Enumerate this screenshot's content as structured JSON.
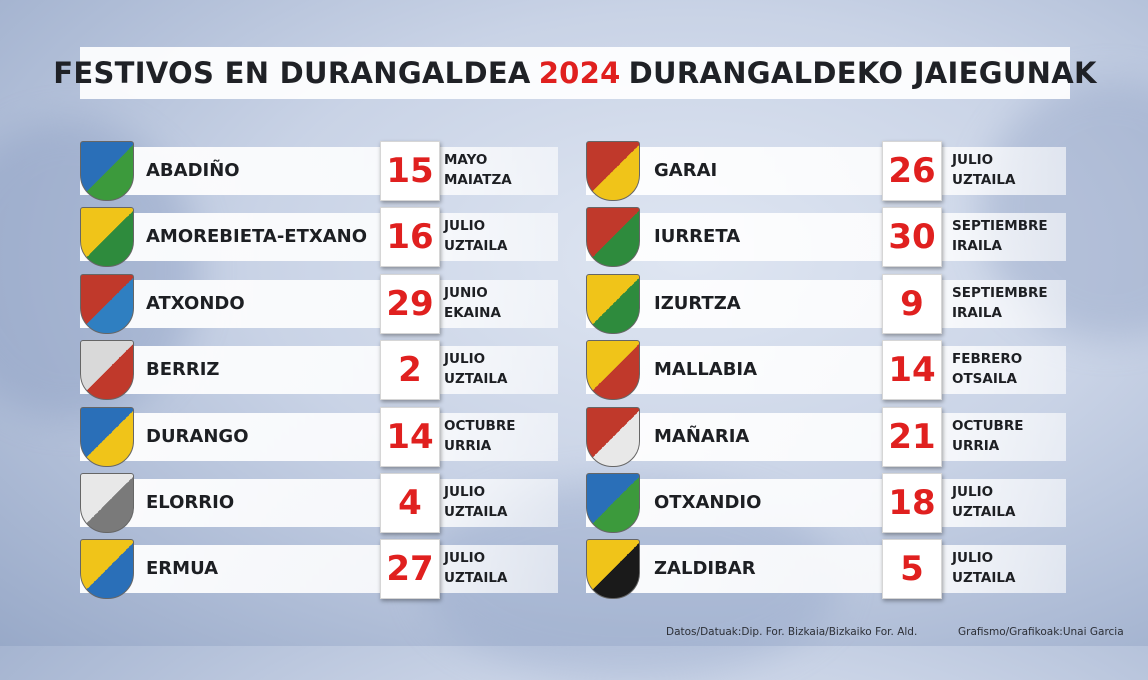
{
  "title": {
    "prefix": "FESTIVOS EN DURANGALDEA",
    "year": "2024",
    "suffix": "DURANGALDEKO JAIEGUNAK"
  },
  "accent_color": "#e0201f",
  "left": [
    {
      "name": "ABADIÑO",
      "day": "15",
      "month_es": "MAYO",
      "month_eu": "MAIATZA",
      "shield": "abadino-coat-of-arms"
    },
    {
      "name": "AMOREBIETA-ETXANO",
      "day": "16",
      "month_es": "JULIO",
      "month_eu": "UZTAILA",
      "shield": "amorebieta-coat-of-arms"
    },
    {
      "name": "ATXONDO",
      "day": "29",
      "month_es": "JUNIO",
      "month_eu": "EKAINA",
      "shield": "atxondo-coat-of-arms"
    },
    {
      "name": "BERRIZ",
      "day": "2",
      "month_es": "JULIO",
      "month_eu": "UZTAILA",
      "shield": "berriz-coat-of-arms"
    },
    {
      "name": "DURANGO",
      "day": "14",
      "month_es": "OCTUBRE",
      "month_eu": "URRIA",
      "shield": "durango-coat-of-arms"
    },
    {
      "name": "ELORRIO",
      "day": "4",
      "month_es": "JULIO",
      "month_eu": "UZTAILA",
      "shield": "elorrio-coat-of-arms"
    },
    {
      "name": "ERMUA",
      "day": "27",
      "month_es": "JULIO",
      "month_eu": "UZTAILA",
      "shield": "ermua-coat-of-arms"
    }
  ],
  "right": [
    {
      "name": "GARAI",
      "day": "26",
      "month_es": "JULIO",
      "month_eu": "UZTAILA",
      "shield": "garai-coat-of-arms"
    },
    {
      "name": "IURRETA",
      "day": "30",
      "month_es": "SEPTIEMBRE",
      "month_eu": "IRAILA",
      "shield": "iurreta-coat-of-arms"
    },
    {
      "name": "IZURTZA",
      "day": "9",
      "month_es": "SEPTIEMBRE",
      "month_eu": "IRAILA",
      "shield": "izurtza-coat-of-arms"
    },
    {
      "name": "MALLABIA",
      "day": "14",
      "month_es": "FEBRERO",
      "month_eu": "OTSAILA",
      "shield": "mallabia-coat-of-arms"
    },
    {
      "name": "MAÑARIA",
      "day": "21",
      "month_es": "OCTUBRE",
      "month_eu": "URRIA",
      "shield": "manaria-coat-of-arms"
    },
    {
      "name": "OTXANDIO",
      "day": "18",
      "month_es": "JULIO",
      "month_eu": "UZTAILA",
      "shield": "otxandio-coat-of-arms"
    },
    {
      "name": "ZALDIBAR",
      "day": "5",
      "month_es": "JULIO",
      "month_eu": "UZTAILA",
      "shield": "zaldibar-coat-of-arms"
    }
  ],
  "credits": {
    "data": "Datos/Datuak:Dip. For. Bizkaia/Bizkaiko For. Ald.",
    "graphics": "Grafismo/Grafikoak:Unai Garcia"
  }
}
